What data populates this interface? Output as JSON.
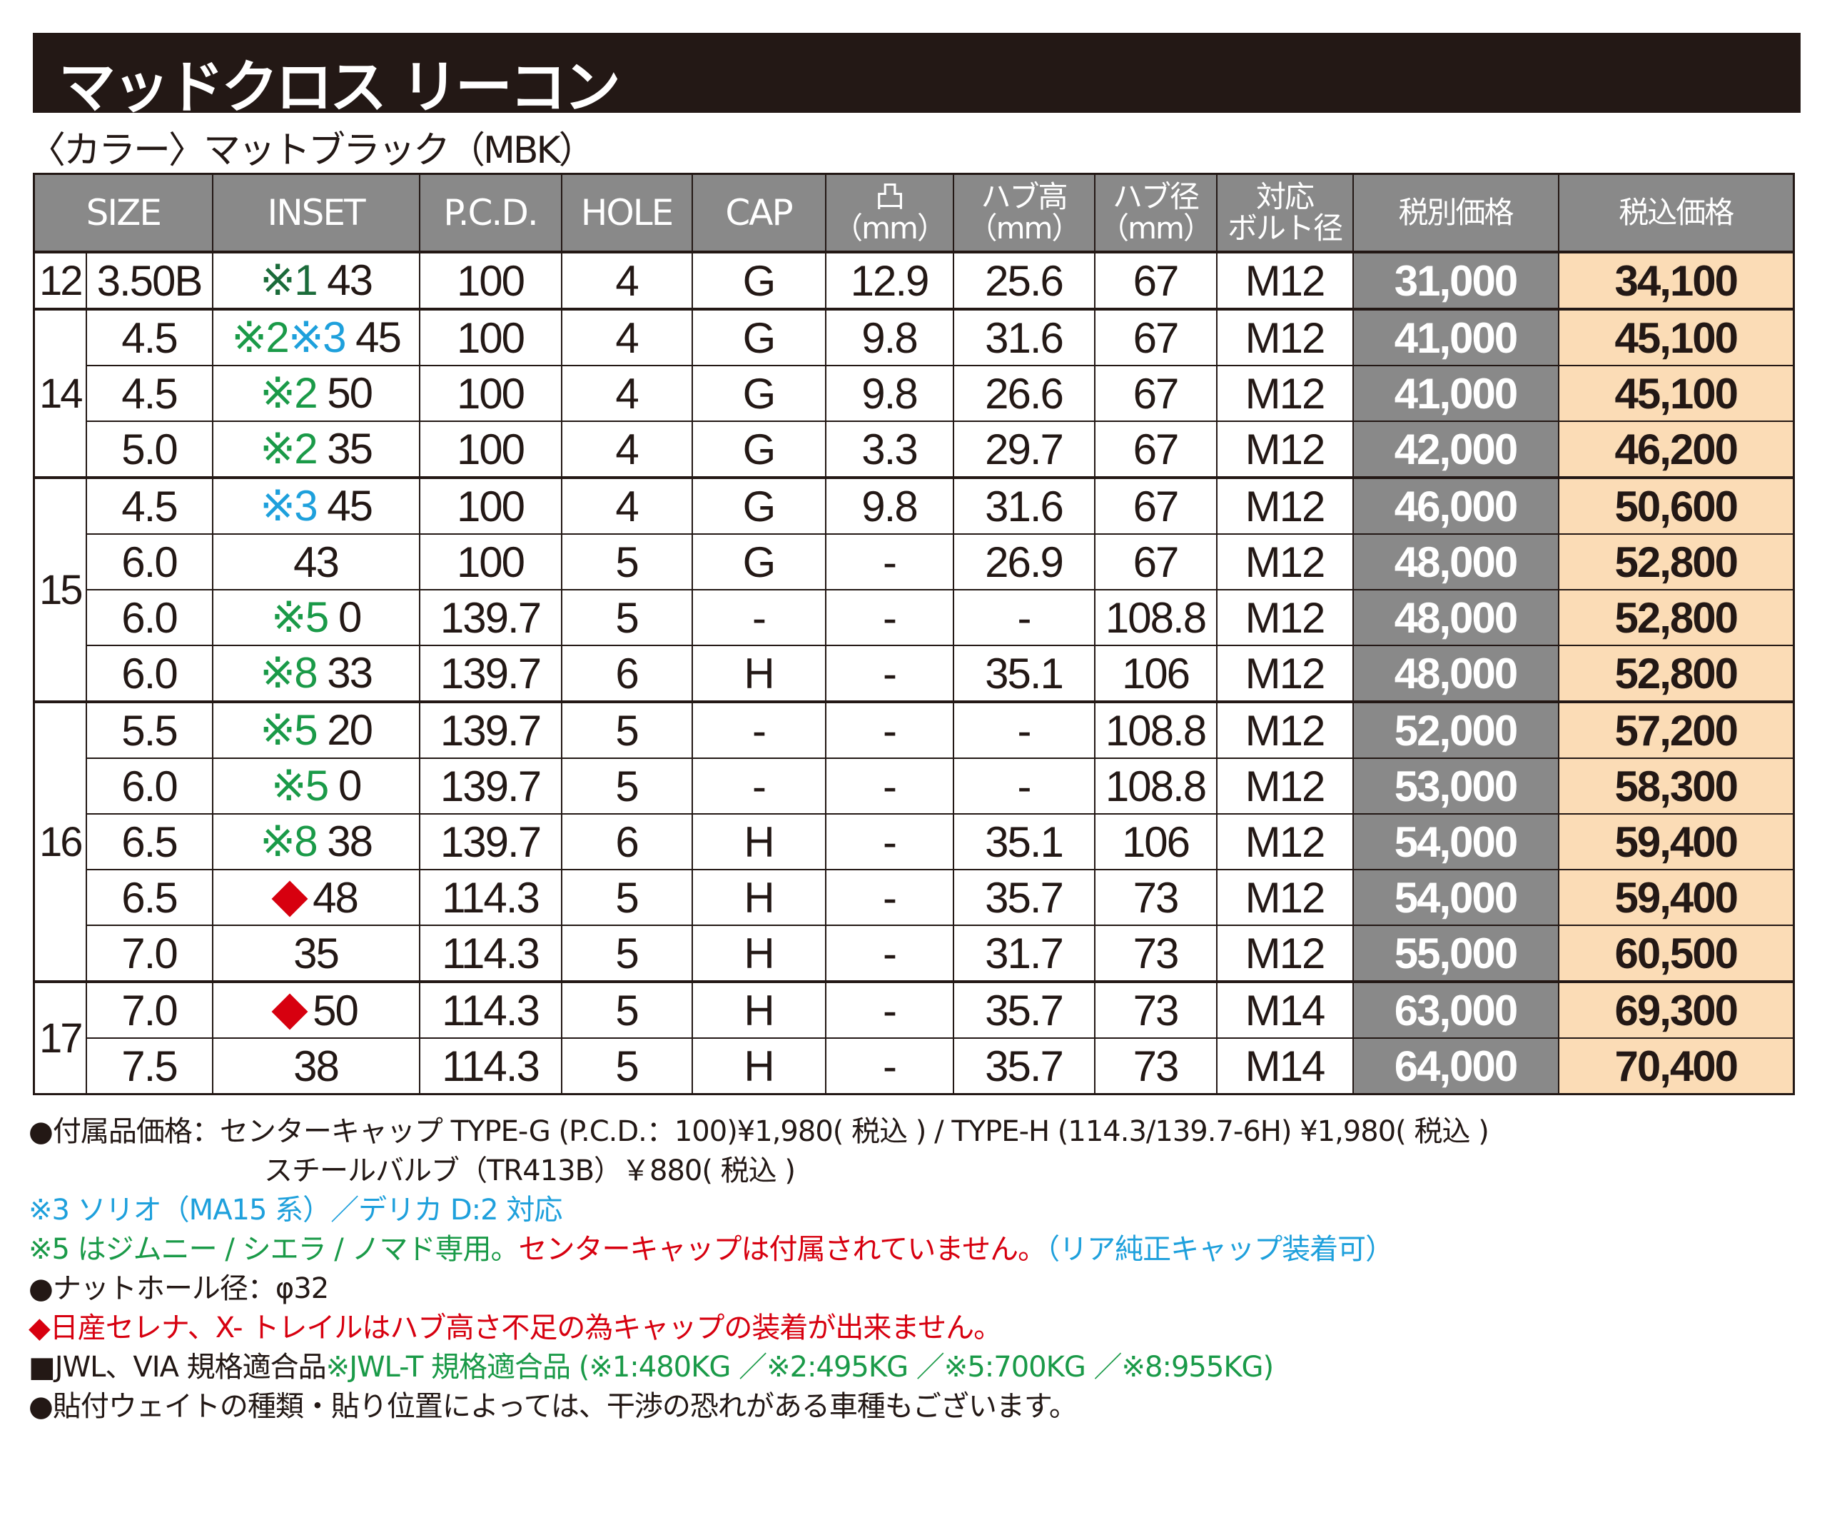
{
  "title": "マッドクロス リーコン",
  "subtitle": "〈カラー〉マットブラック（MBK）",
  "colors": {
    "header_bg": "#898989",
    "price_ex_bg": "#898989",
    "price_in_bg": "#fbdcb6",
    "green": "#1a9a48",
    "dark_green": "#1b6b3a",
    "blue": "#1ea0dc",
    "red": "#d7000f",
    "text": "#231815"
  },
  "headers": {
    "size": "SIZE",
    "inset": "INSET",
    "pcd": "P.C.D.",
    "hole": "HOLE",
    "cap": "CAP",
    "offset": "凸",
    "offset_unit": "（mm）",
    "hub_height": "ハブ高",
    "hub_height_unit": "（mm）",
    "hub_diameter": "ハブ径",
    "hub_diameter_unit": "（mm）",
    "bolt_line1": "対応",
    "bolt_line2": "ボルト径",
    "price_ex": "税別価格",
    "price_in": "税込価格"
  },
  "groups": [
    {
      "rim": "12",
      "rows": [
        {
          "width": "3.50B",
          "marks": [
            {
              "text": "※1 ",
              "color": "#1b6b3a"
            }
          ],
          "inset": "43",
          "pcd": "100",
          "hole": "4",
          "cap": "G",
          "offset": "12.9",
          "hub_h": "25.6",
          "hub_d": "67",
          "bolt": "M12",
          "price_ex": "31,000",
          "price_in": "34,100"
        }
      ]
    },
    {
      "rim": "14",
      "rows": [
        {
          "width": "4.5",
          "marks": [
            {
              "text": "※2",
              "color": "#1a9a48"
            },
            {
              "text": "※3 ",
              "color": "#1ea0dc"
            }
          ],
          "inset": "45",
          "pcd": "100",
          "hole": "4",
          "cap": "G",
          "offset": "9.8",
          "hub_h": "31.6",
          "hub_d": "67",
          "bolt": "M12",
          "price_ex": "41,000",
          "price_in": "45,100"
        },
        {
          "width": "4.5",
          "marks": [
            {
              "text": "※2 ",
              "color": "#1a9a48"
            }
          ],
          "inset": "50",
          "pcd": "100",
          "hole": "4",
          "cap": "G",
          "offset": "9.8",
          "hub_h": "26.6",
          "hub_d": "67",
          "bolt": "M12",
          "price_ex": "41,000",
          "price_in": "45,100"
        },
        {
          "width": "5.0",
          "marks": [
            {
              "text": "※2 ",
              "color": "#1a9a48"
            }
          ],
          "inset": "35",
          "pcd": "100",
          "hole": "4",
          "cap": "G",
          "offset": "3.3",
          "hub_h": "29.7",
          "hub_d": "67",
          "bolt": "M12",
          "price_ex": "42,000",
          "price_in": "46,200"
        }
      ]
    },
    {
      "rim": "15",
      "rows": [
        {
          "width": "4.5",
          "marks": [
            {
              "text": "※3 ",
              "color": "#1ea0dc"
            }
          ],
          "inset": "45",
          "pcd": "100",
          "hole": "4",
          "cap": "G",
          "offset": "9.8",
          "hub_h": "31.6",
          "hub_d": "67",
          "bolt": "M12",
          "price_ex": "46,000",
          "price_in": "50,600"
        },
        {
          "width": "6.0",
          "marks": [],
          "inset": "43",
          "pcd": "100",
          "hole": "5",
          "cap": "G",
          "offset": "-",
          "hub_h": "26.9",
          "hub_d": "67",
          "bolt": "M12",
          "price_ex": "48,000",
          "price_in": "52,800"
        },
        {
          "width": "6.0",
          "marks": [
            {
              "text": "※5 ",
              "color": "#1a9a48"
            }
          ],
          "inset": "0",
          "pcd": "139.7",
          "hole": "5",
          "cap": "-",
          "offset": "-",
          "hub_h": "-",
          "hub_d": "108.8",
          "bolt": "M12",
          "price_ex": "48,000",
          "price_in": "52,800"
        },
        {
          "width": "6.0",
          "marks": [
            {
              "text": "※8 ",
              "color": "#1a9a48"
            }
          ],
          "inset": "33",
          "pcd": "139.7",
          "hole": "6",
          "cap": "H",
          "offset": "-",
          "hub_h": "35.1",
          "hub_d": "106",
          "bolt": "M12",
          "price_ex": "48,000",
          "price_in": "52,800"
        }
      ]
    },
    {
      "rim": "16",
      "rows": [
        {
          "width": "5.5",
          "marks": [
            {
              "text": "※5 ",
              "color": "#1a9a48"
            }
          ],
          "inset": "20",
          "pcd": "139.7",
          "hole": "5",
          "cap": "-",
          "offset": "-",
          "hub_h": "-",
          "hub_d": "108.8",
          "bolt": "M12",
          "price_ex": "52,000",
          "price_in": "57,200"
        },
        {
          "width": "6.0",
          "marks": [
            {
              "text": "※5 ",
              "color": "#1a9a48"
            }
          ],
          "inset": "0",
          "pcd": "139.7",
          "hole": "5",
          "cap": "-",
          "offset": "-",
          "hub_h": "-",
          "hub_d": "108.8",
          "bolt": "M12",
          "price_ex": "53,000",
          "price_in": "58,300"
        },
        {
          "width": "6.5",
          "marks": [
            {
              "text": "※8 ",
              "color": "#1a9a48"
            }
          ],
          "inset": "38",
          "pcd": "139.7",
          "hole": "6",
          "cap": "H",
          "offset": "-",
          "hub_h": "35.1",
          "hub_d": "106",
          "bolt": "M12",
          "price_ex": "54,000",
          "price_in": "59,400"
        },
        {
          "width": "6.5",
          "marks": [],
          "diamond": true,
          "inset": "48",
          "pcd": "114.3",
          "hole": "5",
          "cap": "H",
          "offset": "-",
          "hub_h": "35.7",
          "hub_d": "73",
          "bolt": "M12",
          "price_ex": "54,000",
          "price_in": "59,400"
        },
        {
          "width": "7.0",
          "marks": [],
          "inset": "35",
          "pcd": "114.3",
          "hole": "5",
          "cap": "H",
          "offset": "-",
          "hub_h": "31.7",
          "hub_d": "73",
          "bolt": "M12",
          "price_ex": "55,000",
          "price_in": "60,500"
        }
      ]
    },
    {
      "rim": "17",
      "rows": [
        {
          "width": "7.0",
          "marks": [],
          "diamond": true,
          "inset": "50",
          "pcd": "114.3",
          "hole": "5",
          "cap": "H",
          "offset": "-",
          "hub_h": "35.7",
          "hub_d": "73",
          "bolt": "M14",
          "price_ex": "63,000",
          "price_in": "69,300"
        },
        {
          "width": "7.5",
          "marks": [],
          "inset": "38",
          "pcd": "114.3",
          "hole": "5",
          "cap": "H",
          "offset": "-",
          "hub_h": "35.7",
          "hub_d": "73",
          "bolt": "M14",
          "price_ex": "64,000",
          "price_in": "70,400"
        }
      ]
    }
  ],
  "notes": [
    {
      "indent": false,
      "segments": [
        {
          "text": "●付属品価格：センターキャップ TYPE-G (P.C.D.：100)¥1,980( 税込 ) / TYPE-H (114.3/139.7-6H) ¥1,980( 税込 )",
          "color": "#231815"
        }
      ]
    },
    {
      "indent": true,
      "segments": [
        {
          "text": "スチールバルブ（TR413B）￥880( 税込 )",
          "color": "#231815"
        }
      ]
    },
    {
      "indent": false,
      "segments": [
        {
          "text": "※3 ソリオ（MA15 系）／デリカ D:2 対応",
          "color": "#1ea0dc"
        }
      ]
    },
    {
      "indent": false,
      "segments": [
        {
          "text": "※5 はジムニー / シエラ / ノマド専用。",
          "color": "#1a9a48"
        },
        {
          "text": "センターキャップは付属されていません。",
          "color": "#d7000f"
        },
        {
          "text": "（リア純正キャップ装着可）",
          "color": "#1ea0dc"
        }
      ]
    },
    {
      "indent": false,
      "segments": [
        {
          "text": "●ナットホール径：φ32",
          "color": "#231815"
        }
      ]
    },
    {
      "indent": false,
      "segments": [
        {
          "text": "◆日産セレナ、X- トレイルはハブ高さ不足の為キャップの装着が出来ません。",
          "color": "#d7000f"
        }
      ]
    },
    {
      "indent": false,
      "segments": [
        {
          "text": "■JWL、VIA 規格適合品",
          "color": "#231815"
        },
        {
          "text": "※JWL-T 規格適合品 (※1:480KG ／※2:495KG ／※5:700KG ／※8:955KG)",
          "color": "#1a9a48"
        }
      ]
    },
    {
      "indent": false,
      "segments": [
        {
          "text": "●貼付ウェイトの種類・貼り位置によっては、干渉の恐れがある車種もございます。",
          "color": "#231815"
        }
      ]
    }
  ]
}
